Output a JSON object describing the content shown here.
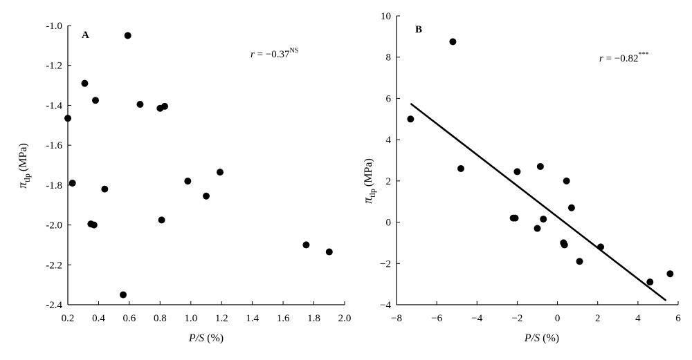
{
  "chart_data": [
    {
      "type": "scatter",
      "panel_label": "A",
      "xlabel": "P/S (%)",
      "ylabel": "π",
      "ylabel_sub": "tlp",
      "ylabel_unit": "(MPa)",
      "annotation": {
        "r": "r",
        "eq": " = −0.37",
        "sig": "NS"
      },
      "xlim": [
        0.2,
        2.0
      ],
      "ylim": [
        -2.4,
        -1.0
      ],
      "xticks": [
        0.2,
        0.4,
        0.6,
        0.8,
        1.0,
        1.2,
        1.4,
        1.6,
        1.8,
        2.0
      ],
      "yticks": [
        -2.4,
        -2.2,
        -2.0,
        -1.8,
        -1.6,
        -1.4,
        -1.2,
        -1.0
      ],
      "xtick_labels": [
        "0.2",
        "0.4",
        "0.6",
        "0.8",
        "1.0",
        "1.2",
        "1.4",
        "1.6",
        "1.8",
        "2.0"
      ],
      "ytick_labels": [
        "-2.4",
        "-2.2",
        "-2.0",
        "-1.8",
        "-1.6",
        "-1.4",
        "-1.2",
        "-1.0"
      ],
      "points": [
        [
          0.2,
          -1.465
        ],
        [
          0.23,
          -1.79
        ],
        [
          0.31,
          -1.29
        ],
        [
          0.35,
          -1.995
        ],
        [
          0.37,
          -2.0
        ],
        [
          0.38,
          -1.375
        ],
        [
          0.44,
          -1.82
        ],
        [
          0.56,
          -2.35
        ],
        [
          0.59,
          -1.05
        ],
        [
          0.67,
          -1.395
        ],
        [
          0.8,
          -1.415
        ],
        [
          0.81,
          -1.975
        ],
        [
          0.83,
          -1.405
        ],
        [
          0.98,
          -1.78
        ],
        [
          1.1,
          -1.855
        ],
        [
          1.19,
          -1.735
        ],
        [
          1.75,
          -2.1
        ],
        [
          1.9,
          -2.135
        ]
      ]
    },
    {
      "type": "scatter",
      "panel_label": "B",
      "xlabel": "P/S (%)",
      "ylabel": "π",
      "ylabel_sub": "tlp",
      "ylabel_unit": "(MPa)",
      "annotation": {
        "r": "r",
        "eq": " = −0.82",
        "sig": "***"
      },
      "xlim": [
        -8,
        6
      ],
      "ylim": [
        -4,
        10
      ],
      "xticks": [
        -8,
        -6,
        -4,
        -2,
        0,
        2,
        4,
        6
      ],
      "yticks": [
        -4,
        -2,
        0,
        2,
        4,
        6,
        8,
        10
      ],
      "xtick_labels": [
        "−8",
        "−6",
        "−4",
        "−2",
        "0",
        "2",
        "4",
        "6"
      ],
      "ytick_labels": [
        "−4",
        "−2",
        "0",
        "2",
        "4",
        "6",
        "8",
        "10"
      ],
      "fit_line": [
        [
          -7.3,
          5.75
        ],
        [
          5.4,
          -3.8
        ]
      ],
      "points": [
        [
          -7.3,
          5.0
        ],
        [
          -5.2,
          8.75
        ],
        [
          -4.8,
          2.6
        ],
        [
          -2.2,
          0.2
        ],
        [
          -2.1,
          0.2
        ],
        [
          -2.0,
          2.45
        ],
        [
          -1.0,
          -0.3
        ],
        [
          -0.85,
          2.7
        ],
        [
          -0.7,
          0.15
        ],
        [
          0.3,
          -1.0
        ],
        [
          0.35,
          -1.1
        ],
        [
          0.45,
          2.0
        ],
        [
          0.7,
          0.7
        ],
        [
          1.1,
          -1.9
        ],
        [
          2.15,
          -1.2
        ],
        [
          4.6,
          -2.9
        ],
        [
          5.6,
          -2.5
        ]
      ]
    }
  ]
}
